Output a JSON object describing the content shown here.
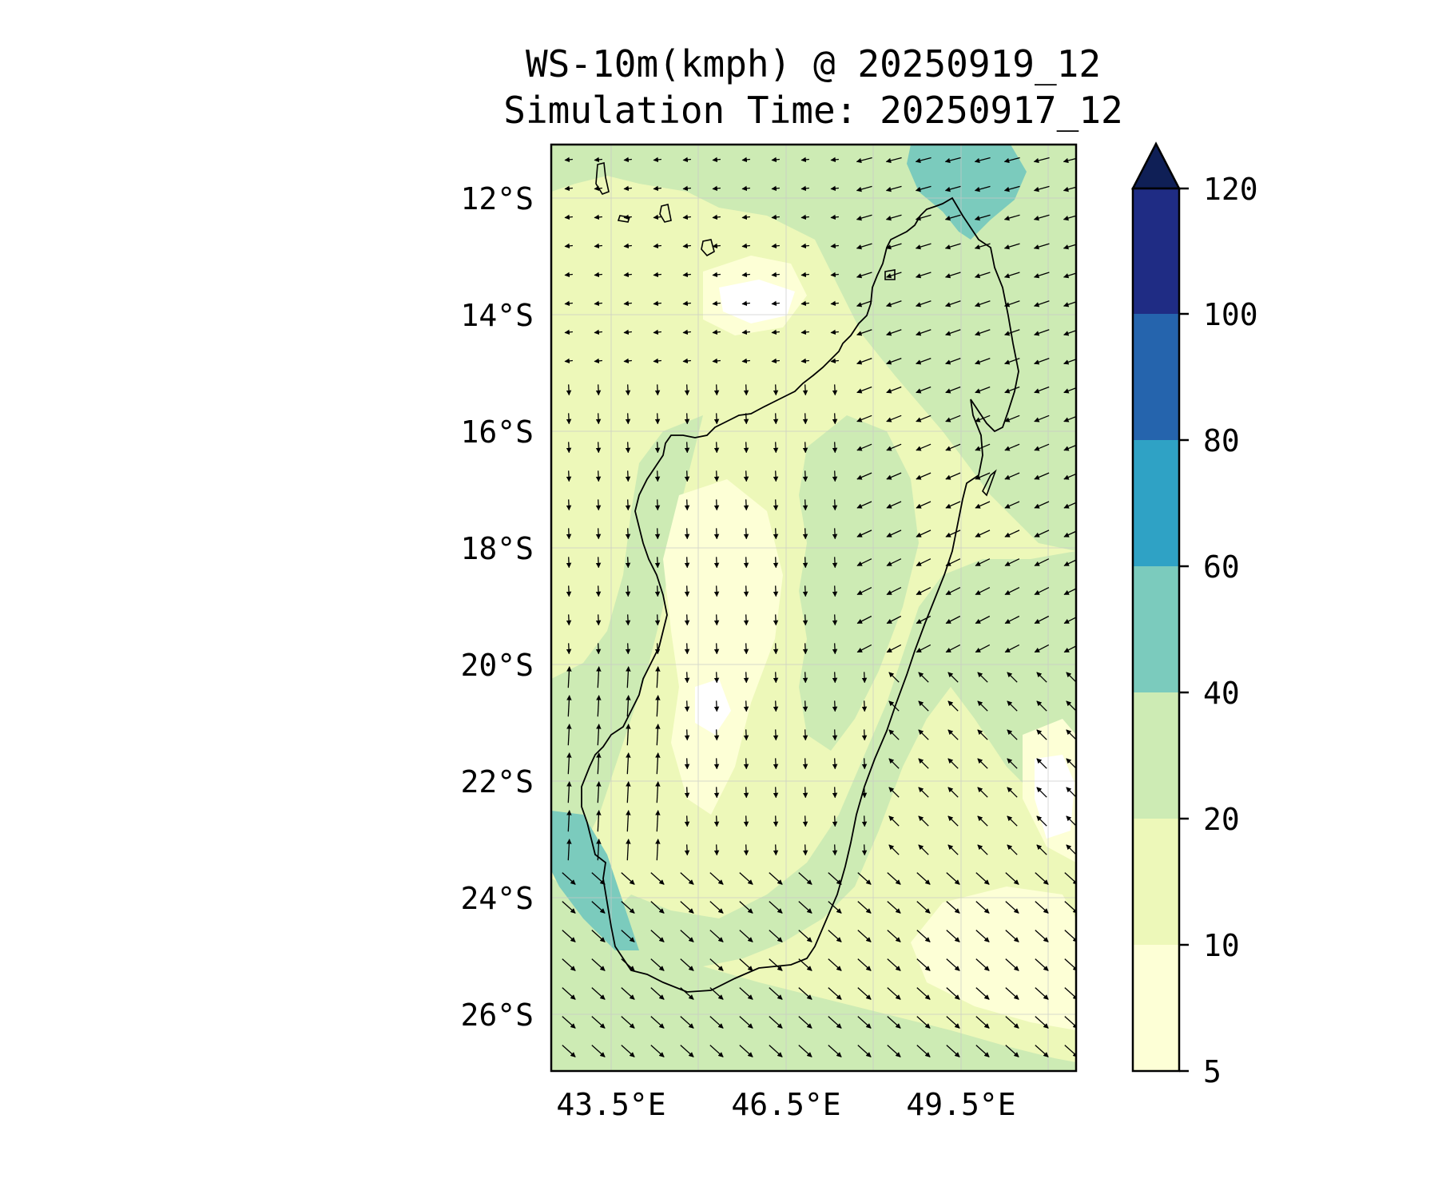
{
  "title": {
    "line1": "WS-10m(kmph) @ 20250919_12",
    "line2": "Simulation Time: 20250917_12"
  },
  "map": {
    "lon_range": [
      42.5,
      51.5
    ],
    "lat_range": [
      -27,
      -11.1
    ],
    "region": "Madagascar",
    "grid": true,
    "coastline_color": "#000000"
  },
  "axes": {
    "y_ticks": [
      "12°S",
      "14°S",
      "16°S",
      "18°S",
      "20°S",
      "22°S",
      "24°S",
      "26°S"
    ],
    "x_ticks": [
      "43.5°E",
      "46.5°E",
      "49.5°E"
    ]
  },
  "colorbar": {
    "ticks": [
      "5",
      "10",
      "20",
      "40",
      "60",
      "80",
      "100",
      "120"
    ],
    "colors": [
      "#fdffd6",
      "#edf8b9",
      "#cdebb4",
      "#7bcbbd",
      "#2fa2c5",
      "#2564ad",
      "#1f2c84"
    ],
    "extend_color": "#0f1f56"
  },
  "legend_colors": {
    "white": "#ffffff",
    "vlight": "#fdffd6",
    "light": "#edf8b9",
    "green": "#cdebb4",
    "teal": "#7bcbbd"
  }
}
